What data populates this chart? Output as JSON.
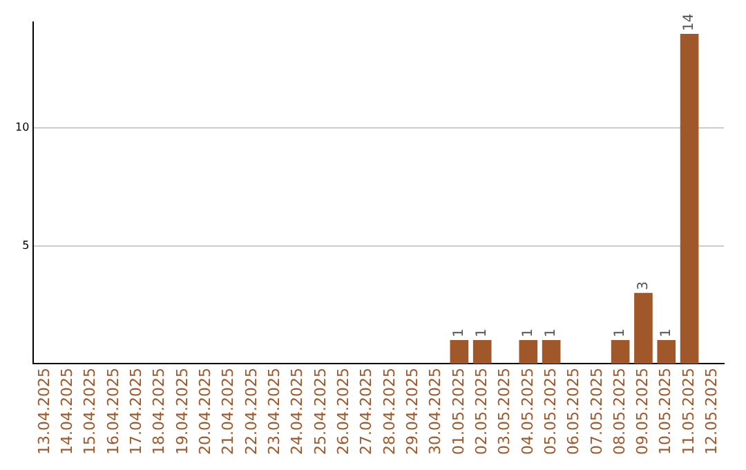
{
  "chart_data": {
    "type": "bar",
    "categories": [
      "13.04.2025",
      "14.04.2025",
      "15.04.2025",
      "16.04.2025",
      "17.04.2025",
      "18.04.2025",
      "19.04.2025",
      "20.04.2025",
      "21.04.2025",
      "22.04.2025",
      "23.04.2025",
      "24.04.2025",
      "25.04.2025",
      "26.04.2025",
      "27.04.2025",
      "28.04.2025",
      "29.04.2025",
      "30.04.2025",
      "01.05.2025",
      "02.05.2025",
      "03.05.2025",
      "04.05.2025",
      "05.05.2025",
      "06.05.2025",
      "07.05.2025",
      "08.05.2025",
      "09.05.2025",
      "10.05.2025",
      "11.05.2025",
      "12.05.2025"
    ],
    "values": [
      0,
      0,
      0,
      0,
      0,
      0,
      0,
      0,
      0,
      0,
      0,
      0,
      0,
      0,
      0,
      0,
      0,
      0,
      1,
      1,
      0,
      1,
      1,
      0,
      0,
      1,
      3,
      1,
      14,
      0
    ],
    "value_labels": [
      null,
      null,
      null,
      null,
      null,
      null,
      null,
      null,
      null,
      null,
      null,
      null,
      null,
      null,
      null,
      null,
      null,
      null,
      "1",
      "1",
      null,
      "1",
      "1",
      null,
      null,
      "1",
      "3",
      "1",
      "14",
      null
    ],
    "color": "#a0582b",
    "ylim": [
      0,
      14.5
    ],
    "yticks": [
      5,
      10
    ],
    "grid": "y",
    "legend": false
  }
}
